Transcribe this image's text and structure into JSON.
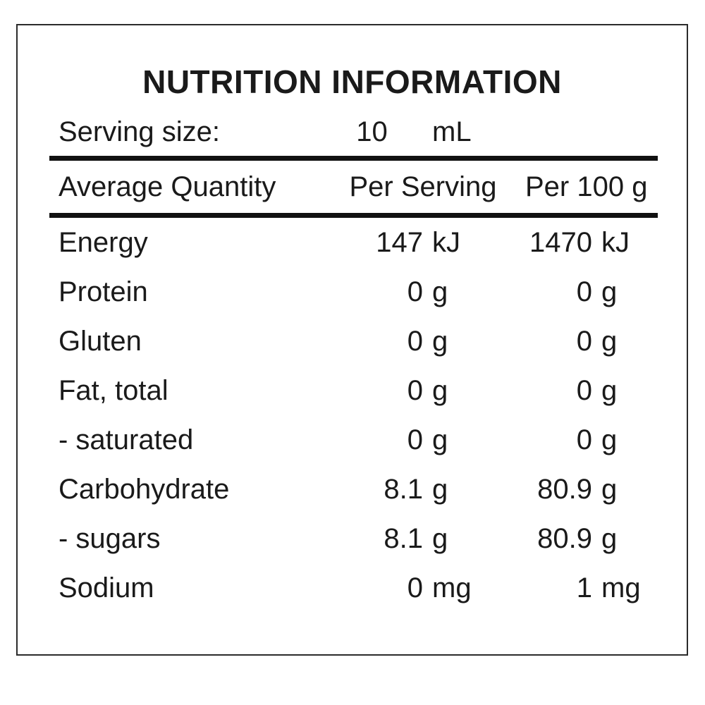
{
  "title": "NUTRITION INFORMATION",
  "serving": {
    "label": "Serving size:",
    "value": "10",
    "unit": "mL"
  },
  "columns": {
    "quantity": "Average Quantity",
    "per_serving": "Per Serving",
    "per_100g": "Per 100 g"
  },
  "rows": [
    {
      "name": "Energy",
      "ps_value": "147",
      "ps_unit": "kJ",
      "p100_value": "1470",
      "p100_unit": "kJ"
    },
    {
      "name": "Protein",
      "ps_value": "0",
      "ps_unit": "g",
      "p100_value": "0",
      "p100_unit": "g"
    },
    {
      "name": "Gluten",
      "ps_value": "0",
      "ps_unit": "g",
      "p100_value": "0",
      "p100_unit": "g"
    },
    {
      "name": "Fat, total",
      "ps_value": "0",
      "ps_unit": "g",
      "p100_value": "0",
      "p100_unit": "g"
    },
    {
      "name": "- saturated",
      "ps_value": "0",
      "ps_unit": "g",
      "p100_value": "0",
      "p100_unit": "g"
    },
    {
      "name": "Carbohydrate",
      "ps_value": "8.1",
      "ps_unit": "g",
      "p100_value": "80.9",
      "p100_unit": "g"
    },
    {
      "name": "- sugars",
      "ps_value": "8.1",
      "ps_unit": "g",
      "p100_value": "80.9",
      "p100_unit": "g"
    },
    {
      "name": "Sodium",
      "ps_value": "0",
      "ps_unit": "mg",
      "p100_value": "1",
      "p100_unit": "mg"
    }
  ],
  "colors": {
    "text": "#1a1a1a",
    "border": "#2b2b2b",
    "rule": "#111111",
    "background": "#ffffff"
  }
}
